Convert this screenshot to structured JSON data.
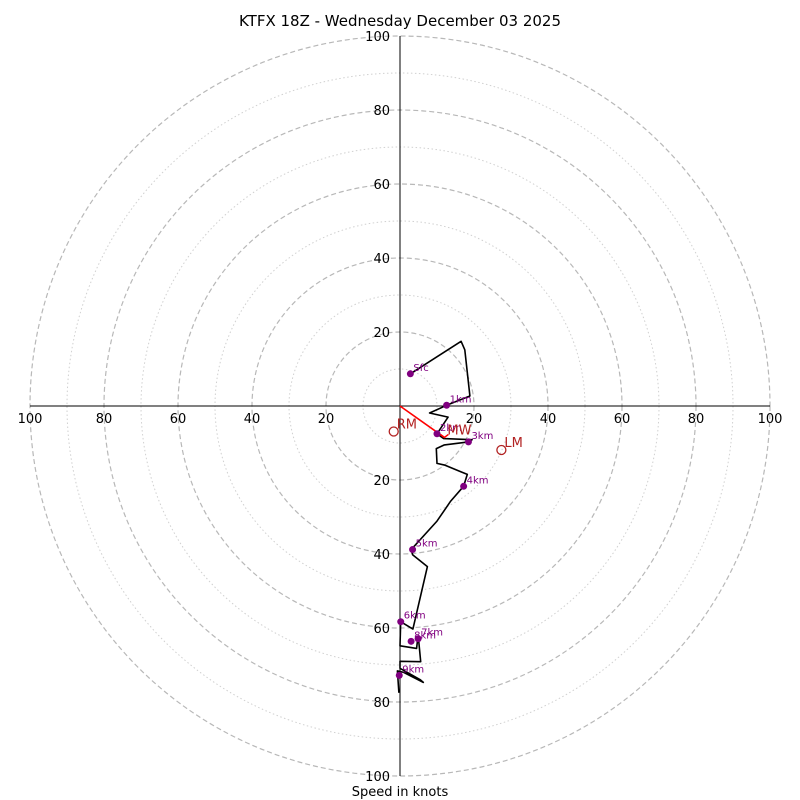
{
  "chart_data": {
    "type": "hodograph",
    "title": "KTFX 18Z - Wednesday December 03 2025",
    "xlabel": "Speed in knots",
    "range": [
      -100,
      100
    ],
    "ring_speeds": [
      10,
      20,
      30,
      40,
      50,
      60,
      70,
      80,
      90,
      100
    ],
    "axis_ticks": [
      {
        "value": -100,
        "label": "100"
      },
      {
        "value": -80,
        "label": "80"
      },
      {
        "value": -60,
        "label": "60"
      },
      {
        "value": -40,
        "label": "40"
      },
      {
        "value": -20,
        "label": "20"
      },
      {
        "value": 20,
        "label": "20"
      },
      {
        "value": 40,
        "label": "40"
      },
      {
        "value": 60,
        "label": "60"
      },
      {
        "value": 80,
        "label": "80"
      },
      {
        "value": 100,
        "label": "100"
      }
    ],
    "trace": [
      [
        2.8,
        8.7
      ],
      [
        16.5,
        17.5
      ],
      [
        17.5,
        15.2
      ],
      [
        18.9,
        2.7
      ],
      [
        12.6,
        0.2
      ],
      [
        8.0,
        -1.9
      ],
      [
        13.0,
        -3.0
      ],
      [
        10.0,
        -7.5
      ],
      [
        11.8,
        -8.8
      ],
      [
        19.5,
        -9.1
      ],
      [
        18.5,
        -9.7
      ],
      [
        12.0,
        -10.5
      ],
      [
        9.8,
        -11.5
      ],
      [
        10.0,
        -15.5
      ],
      [
        12.2,
        -16.0
      ],
      [
        16.5,
        -17.8
      ],
      [
        18.2,
        -18.5
      ],
      [
        17.2,
        -21.7
      ],
      [
        13.7,
        -25.7
      ],
      [
        10.0,
        -31.1
      ],
      [
        3.5,
        -38.3
      ],
      [
        3.2,
        -39.4
      ],
      [
        3.4,
        -40.2
      ],
      [
        7.4,
        -43.4
      ],
      [
        3.5,
        -60.3
      ],
      [
        0.2,
        -58.3
      ],
      [
        0.0,
        -64.8
      ],
      [
        4.5,
        -65.5
      ],
      [
        4.7,
        -63.6
      ],
      [
        5.0,
        -62.9
      ],
      [
        5.6,
        -69.1
      ],
      [
        0.0,
        -69.0
      ],
      [
        0.0,
        -70.9
      ],
      [
        5.5,
        -74.0
      ],
      [
        6.3,
        -74.7
      ],
      [
        1.0,
        -72.0
      ],
      [
        -0.7,
        -71.6
      ],
      [
        -0.3,
        -77.5
      ]
    ],
    "height_markers": [
      {
        "label": "Sfc",
        "u": 2.8,
        "v": 8.7
      },
      {
        "label": "1km",
        "u": 12.6,
        "v": 0.2
      },
      {
        "label": "2km",
        "u": 10.0,
        "v": -7.5
      },
      {
        "label": "3km",
        "u": 18.5,
        "v": -9.7
      },
      {
        "label": "4km",
        "u": 17.2,
        "v": -21.7
      },
      {
        "label": "5km",
        "u": 3.4,
        "v": -38.8
      },
      {
        "label": "6km",
        "u": 0.2,
        "v": -58.3
      },
      {
        "label": "7km",
        "u": 4.9,
        "v": -62.9
      },
      {
        "label": "8km",
        "u": 3.0,
        "v": -63.6
      },
      {
        "label": "9km",
        "u": -0.2,
        "v": -72.8
      }
    ],
    "motion_markers": [
      {
        "label": "RM",
        "u": -1.7,
        "v": -6.9
      },
      {
        "label": "MW",
        "u": 12.0,
        "v": -8.5
      },
      {
        "label": "LM",
        "u": 27.4,
        "v": -11.9
      }
    ],
    "storm_vector": {
      "u": 12.0,
      "v": -8.5
    },
    "colors": {
      "trace": "#000000",
      "marker": "#800080",
      "motion": "#b22222",
      "vector": "#ff0000",
      "rings": "#b8b8b8",
      "minor_rings": "#d0d0d0"
    }
  }
}
